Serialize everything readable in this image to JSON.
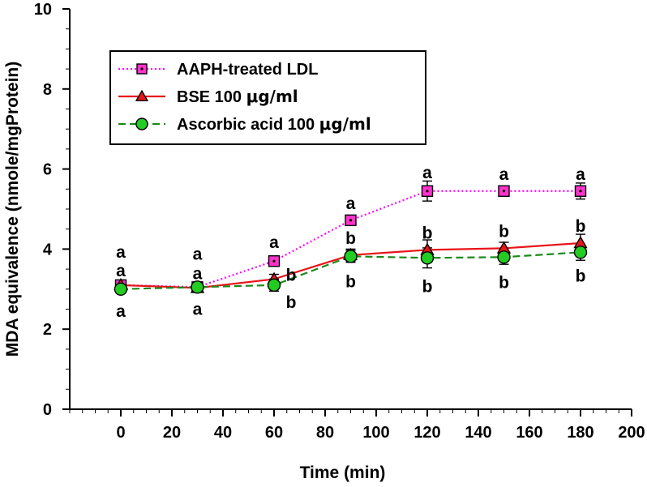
{
  "chart_data": {
    "type": "line",
    "title": "",
    "xlabel": "Time (min)",
    "ylabel": "MDA equivalence (nmole/mgProtein)",
    "xlim": [
      -20,
      200
    ],
    "ylim": [
      0,
      10
    ],
    "x_ticks": [
      0,
      20,
      40,
      60,
      80,
      100,
      120,
      140,
      160,
      180,
      200
    ],
    "y_ticks": [
      0,
      2,
      4,
      6,
      8,
      10
    ],
    "x": [
      0,
      30,
      60,
      90,
      120,
      150,
      180
    ],
    "legend_position": "top-left",
    "series": [
      {
        "name": "AAPH-treated LDL",
        "legend_prefix": "AAPH-treated LDL",
        "legend_unit": "",
        "color": "#ff00ff",
        "marker_fill": "#ff33cc",
        "marker": "square",
        "line_style": "dotted",
        "values": [
          3.1,
          3.05,
          3.7,
          4.72,
          5.45,
          5.45,
          5.45
        ],
        "errors": [
          0.1,
          0.08,
          0.1,
          0.12,
          0.25,
          0.12,
          0.2
        ],
        "letters": [
          "a",
          "a",
          "a",
          "a",
          "a",
          "a",
          "a"
        ]
      },
      {
        "name": "BSE 100 μg/ml",
        "legend_prefix": "BSE 100 ",
        "legend_unit": "μg/ml",
        "color": "#e8141a",
        "marker_fill": "#e8141a",
        "marker": "triangle",
        "line_style": "solid",
        "values": [
          3.1,
          3.03,
          3.25,
          3.85,
          3.98,
          4.02,
          4.15
        ],
        "errors": [
          0.1,
          0.08,
          0.12,
          0.15,
          0.25,
          0.15,
          0.22
        ],
        "letters": [
          "a",
          "a",
          "b",
          "b",
          "b",
          "b",
          "b"
        ]
      },
      {
        "name": "Ascorbic acid 100 μg/ml",
        "legend_prefix": "Ascorbic acid 100 ",
        "legend_unit": "μg/ml",
        "color": "#1a8a1a",
        "marker_fill": "#22cc22",
        "marker": "circle",
        "line_style": "dashed",
        "values": [
          3.0,
          3.05,
          3.1,
          3.82,
          3.78,
          3.8,
          3.92
        ],
        "errors": [
          0.08,
          0.08,
          0.15,
          0.15,
          0.25,
          0.18,
          0.2
        ],
        "letters": [
          "a",
          "a",
          "b",
          "b",
          "b",
          "b",
          "b"
        ]
      }
    ]
  }
}
